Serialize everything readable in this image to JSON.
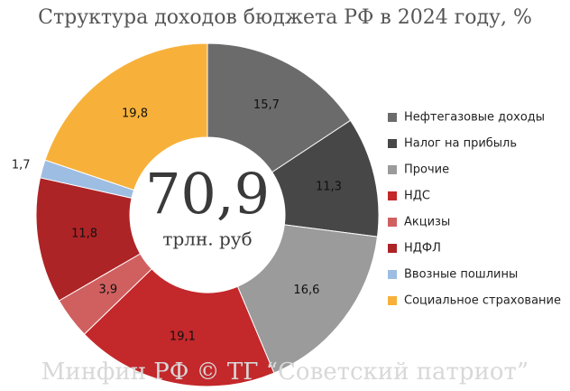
{
  "chart_data": {
    "type": "donut",
    "title": "Структура доходов бюджета РФ в 2024 году, %",
    "center_value": "70,9",
    "center_label": "трлн. руб",
    "watermark": "Минфин РФ © ТГ “Советский патриот”",
    "categories": [
      "Нефтегазовые доходы",
      "Налог на прибыль",
      "Прочие",
      "НДС",
      "Акцизы",
      "НДФЛ",
      "Ввозные пошлины",
      "Социальное страхование"
    ],
    "values": [
      15.7,
      11.3,
      16.6,
      19.1,
      3.9,
      11.8,
      1.7,
      19.8
    ],
    "value_labels": [
      "15,7",
      "11,3",
      "16,6",
      "19,1",
      "3,9",
      "11,8",
      "1,7",
      "19,8"
    ],
    "colors": [
      "#6b6b6b",
      "#474747",
      "#9b9b9b",
      "#c3282b",
      "#d0605f",
      "#ad2426",
      "#9dbde2",
      "#f7b13a"
    ],
    "legend": "right"
  }
}
